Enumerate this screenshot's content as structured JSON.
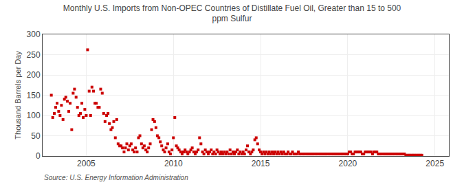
{
  "chart_data": {
    "type": "scatter",
    "title": "Monthly U.S. Imports from Non-OPEC Countries of Distillate Fuel Oil, Greater than 15 to 500\nppm Sulfur",
    "ylabel": "Thousand Barrels per Day",
    "annotations": [
      "Source: U.S. Energy Information Administration"
    ],
    "color": "#cc0000",
    "marker": "square",
    "grid": true,
    "xlim": [
      2002.5,
      2025.8
    ],
    "xticks": [
      2005,
      2010,
      2015,
      2020,
      2025
    ],
    "ylim": [
      0,
      300
    ],
    "yticks": [
      0,
      50,
      100,
      150,
      200,
      250,
      300
    ],
    "x": [
      2003.0,
      2003.08,
      2003.17,
      2003.25,
      2003.33,
      2003.42,
      2003.5,
      2003.58,
      2003.67,
      2003.75,
      2003.83,
      2003.92,
      2004.0,
      2004.08,
      2004.17,
      2004.25,
      2004.33,
      2004.42,
      2004.5,
      2004.58,
      2004.67,
      2004.75,
      2004.83,
      2004.92,
      2005.0,
      2005.08,
      2005.17,
      2005.25,
      2005.33,
      2005.42,
      2005.5,
      2005.58,
      2005.67,
      2005.75,
      2005.83,
      2005.92,
      2006.0,
      2006.08,
      2006.17,
      2006.25,
      2006.33,
      2006.42,
      2006.5,
      2006.58,
      2006.67,
      2006.75,
      2006.83,
      2006.92,
      2007.0,
      2007.08,
      2007.17,
      2007.25,
      2007.33,
      2007.42,
      2007.5,
      2007.58,
      2007.67,
      2007.75,
      2007.83,
      2007.92,
      2008.0,
      2008.08,
      2008.17,
      2008.25,
      2008.33,
      2008.42,
      2008.5,
      2008.58,
      2008.67,
      2008.75,
      2008.83,
      2008.92,
      2009.0,
      2009.08,
      2009.17,
      2009.25,
      2009.33,
      2009.42,
      2009.5,
      2009.58,
      2009.67,
      2009.75,
      2009.83,
      2009.92,
      2010.0,
      2010.08,
      2010.17,
      2010.25,
      2010.33,
      2010.42,
      2010.5,
      2010.58,
      2010.67,
      2010.75,
      2010.83,
      2010.92,
      2011.0,
      2011.08,
      2011.17,
      2011.25,
      2011.33,
      2011.42,
      2011.5,
      2011.58,
      2011.67,
      2011.75,
      2011.83,
      2011.92,
      2012.0,
      2012.08,
      2012.17,
      2012.25,
      2012.33,
      2012.42,
      2012.5,
      2012.58,
      2012.67,
      2012.75,
      2012.83,
      2012.92,
      2013.0,
      2013.08,
      2013.17,
      2013.25,
      2013.33,
      2013.42,
      2013.5,
      2013.58,
      2013.67,
      2013.75,
      2013.83,
      2013.92,
      2014.0,
      2014.08,
      2014.17,
      2014.25,
      2014.33,
      2014.42,
      2014.5,
      2014.58,
      2014.67,
      2014.75,
      2014.83,
      2014.92,
      2015.0,
      2015.08,
      2015.17,
      2015.25,
      2015.33,
      2015.42,
      2015.5,
      2015.58,
      2015.67,
      2015.75,
      2015.83,
      2015.92,
      2016.0,
      2016.08,
      2016.17,
      2016.25,
      2016.33,
      2016.42,
      2016.5,
      2016.58,
      2016.67,
      2016.75,
      2016.83,
      2016.92,
      2017.0,
      2017.08,
      2017.17,
      2017.25,
      2017.33,
      2017.42,
      2017.5,
      2017.58,
      2017.67,
      2017.75,
      2017.83,
      2017.92,
      2018.0,
      2018.08,
      2018.17,
      2018.25,
      2018.33,
      2018.42,
      2018.5,
      2018.58,
      2018.67,
      2018.75,
      2018.83,
      2018.92,
      2019.0,
      2019.08,
      2019.17,
      2019.25,
      2019.33,
      2019.42,
      2019.5,
      2019.58,
      2019.67,
      2019.75,
      2019.83,
      2019.92,
      2020.0,
      2020.08,
      2020.17,
      2020.25,
      2020.33,
      2020.42,
      2020.5,
      2020.58,
      2020.67,
      2020.75,
      2020.83,
      2020.92,
      2021.0,
      2021.08,
      2021.17,
      2021.25,
      2021.33,
      2021.42,
      2021.5,
      2021.58,
      2021.67,
      2021.75,
      2021.83,
      2021.92,
      2022.0,
      2022.08,
      2022.17,
      2022.25,
      2022.33,
      2022.42,
      2022.5,
      2022.58,
      2022.67,
      2022.75,
      2022.83,
      2022.92,
      2023.0,
      2023.08,
      2023.17,
      2023.25,
      2023.33,
      2023.42,
      2023.5,
      2023.58,
      2023.67,
      2023.75,
      2023.83,
      2023.92,
      2024.0,
      2024.08,
      2024.17,
      2024.25
    ],
    "values": [
      150,
      95,
      105,
      120,
      130,
      110,
      100,
      125,
      90,
      140,
      145,
      135,
      110,
      130,
      65,
      155,
      165,
      145,
      120,
      100,
      105,
      130,
      95,
      115,
      100,
      262,
      160,
      100,
      170,
      160,
      130,
      130,
      120,
      120,
      165,
      155,
      105,
      85,
      100,
      105,
      80,
      65,
      70,
      85,
      45,
      90,
      30,
      25,
      25,
      20,
      10,
      20,
      30,
      15,
      25,
      30,
      15,
      10,
      20,
      10,
      45,
      50,
      30,
      20,
      25,
      15,
      10,
      20,
      30,
      65,
      90,
      85,
      70,
      50,
      45,
      35,
      25,
      15,
      10,
      20,
      30,
      10,
      5,
      15,
      45,
      95,
      25,
      20,
      15,
      10,
      5,
      10,
      15,
      10,
      5,
      10,
      15,
      20,
      10,
      5,
      10,
      15,
      45,
      30,
      10,
      5,
      15,
      10,
      5,
      10,
      15,
      5,
      10,
      5,
      15,
      10,
      5,
      10,
      5,
      10,
      5,
      10,
      5,
      15,
      5,
      10,
      5,
      10,
      15,
      5,
      10,
      5,
      10,
      5,
      15,
      25,
      10,
      5,
      10,
      15,
      40,
      45,
      30,
      15,
      10,
      5,
      10,
      5,
      10,
      5,
      10,
      5,
      10,
      5,
      10,
      5,
      10,
      5,
      10,
      5,
      10,
      5,
      5,
      10,
      5,
      5,
      10,
      5,
      5,
      5,
      10,
      5,
      5,
      5,
      5,
      5,
      5,
      5,
      5,
      5,
      5,
      5,
      5,
      5,
      5,
      5,
      5,
      5,
      5,
      5,
      5,
      5,
      5,
      5,
      5,
      5,
      5,
      5,
      5,
      5,
      5,
      5,
      5,
      5,
      5,
      10,
      10,
      5,
      5,
      10,
      10,
      10,
      10,
      10,
      5,
      5,
      10,
      10,
      10,
      10,
      10,
      5,
      10,
      10,
      10,
      5,
      5,
      5,
      5,
      5,
      5,
      5,
      5,
      5,
      5,
      5,
      5,
      5,
      5,
      5,
      5,
      5,
      5,
      5,
      2,
      2,
      2,
      2,
      2,
      2,
      2,
      2,
      2,
      2,
      2,
      2
    ]
  }
}
